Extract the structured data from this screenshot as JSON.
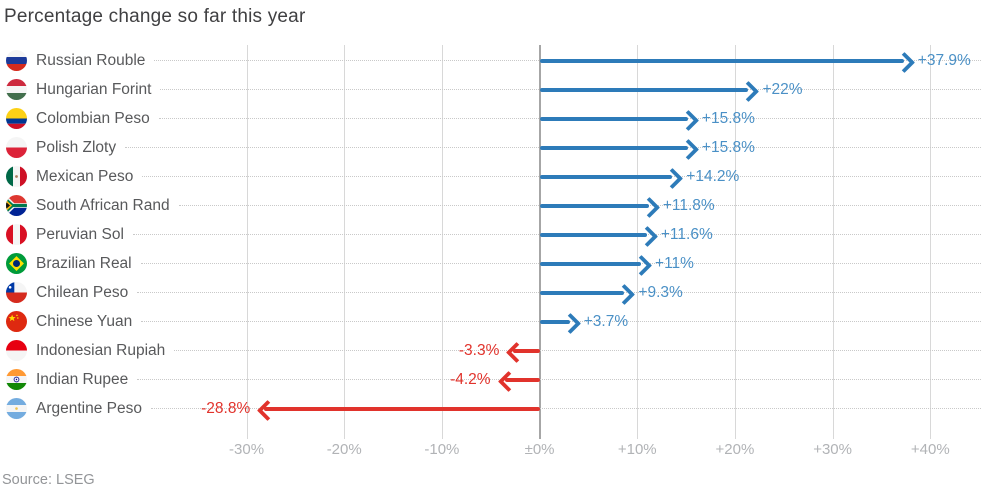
{
  "title": "Percentage change so far this year",
  "source": "Source: LSEG",
  "colors": {
    "positive": "#2d7bb9",
    "positive_label": "#4a90c6",
    "negative": "#e1332c",
    "negative_label": "#e1332c",
    "gridline": "#d8d8d8",
    "zero_line": "#a6a6a6",
    "leader_dots": "#c9c9c9",
    "title_text": "#404042",
    "category_text": "#58595b",
    "axis_text": "#b1b3b6"
  },
  "chart_data": {
    "type": "bar",
    "subtype": "horizontal-arrow",
    "title": "Percentage change so far this year",
    "xlim": [
      -36.3,
      45.6
    ],
    "grid": "vertical-on",
    "ticks": [
      {
        "v": -30,
        "label": "-30%"
      },
      {
        "v": -20,
        "label": "-20%"
      },
      {
        "v": -10,
        "label": "-10%"
      },
      {
        "v": 0,
        "label": "±0%"
      },
      {
        "v": 10,
        "label": "+10%"
      },
      {
        "v": 20,
        "label": "+20%"
      },
      {
        "v": 30,
        "label": "+30%"
      },
      {
        "v": 40,
        "label": "+40%"
      }
    ],
    "rows": [
      {
        "name": "Russian Rouble",
        "flag": "russia",
        "value": 37.9,
        "label": "+37.9%"
      },
      {
        "name": "Hungarian Forint",
        "flag": "hungary",
        "value": 22,
        "label": "+22%"
      },
      {
        "name": "Colombian Peso",
        "flag": "colombia",
        "value": 15.8,
        "label": "+15.8%"
      },
      {
        "name": "Polish Zloty",
        "flag": "poland",
        "value": 15.8,
        "label": "+15.8%"
      },
      {
        "name": "Mexican Peso",
        "flag": "mexico",
        "value": 14.2,
        "label": "+14.2%"
      },
      {
        "name": "South African Rand",
        "flag": "south-africa",
        "value": 11.8,
        "label": "+11.8%"
      },
      {
        "name": "Peruvian Sol",
        "flag": "peru",
        "value": 11.6,
        "label": "+11.6%"
      },
      {
        "name": "Brazilian Real",
        "flag": "brazil",
        "value": 11,
        "label": "+11%"
      },
      {
        "name": "Chilean Peso",
        "flag": "chile",
        "value": 9.3,
        "label": "+9.3%"
      },
      {
        "name": "Chinese Yuan",
        "flag": "china",
        "value": 3.7,
        "label": "+3.7%"
      },
      {
        "name": "Indonesian Rupiah",
        "flag": "indonesia",
        "value": -3.3,
        "label": "-3.3%"
      },
      {
        "name": "Indian Rupee",
        "flag": "india",
        "value": -4.2,
        "label": "-4.2%"
      },
      {
        "name": "Argentine Peso",
        "flag": "argentina",
        "value": -28.8,
        "label": "-28.8%"
      }
    ]
  }
}
